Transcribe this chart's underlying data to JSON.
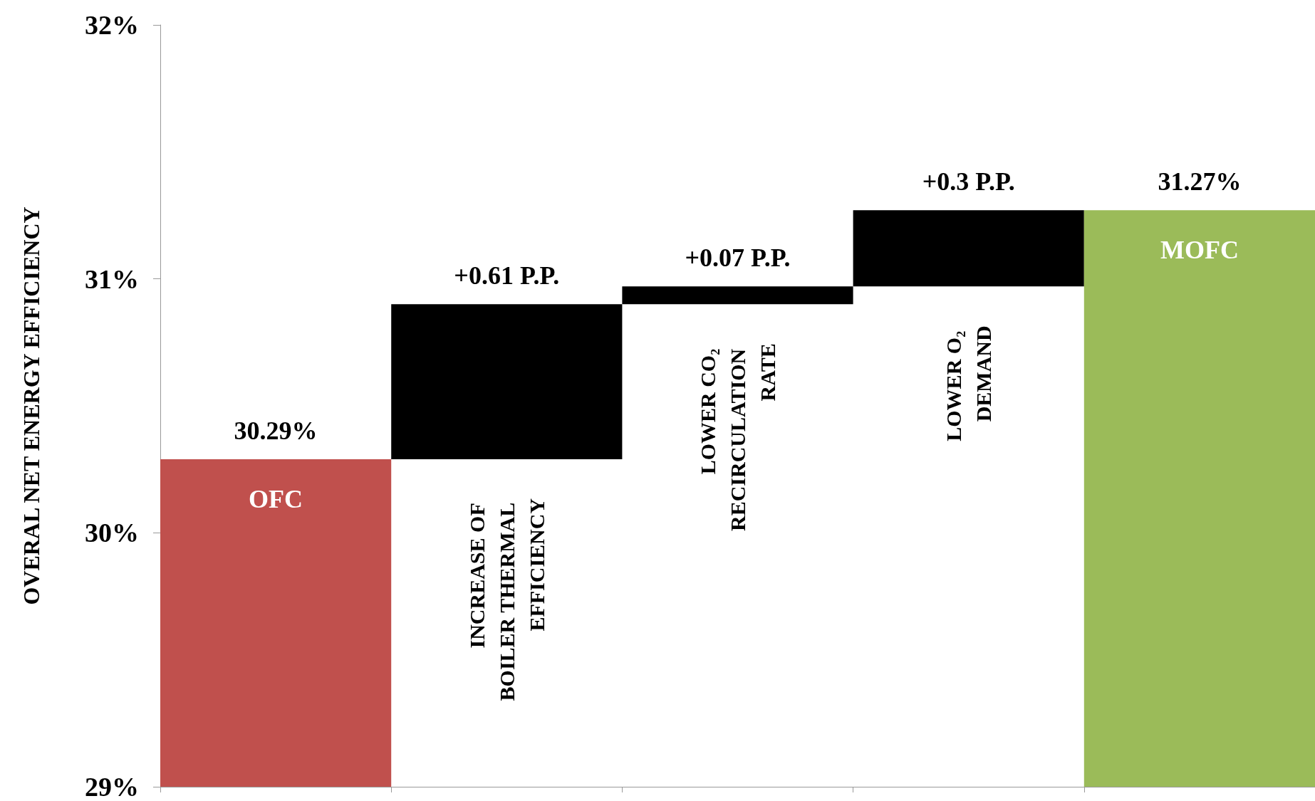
{
  "chart_data": {
    "type": "bar",
    "ylabel": "OVERAL NET ENERGY EFFICIENCY",
    "categories": [
      "OFC",
      "INCREASE OF BOILER THERMAL EFFICIENCY",
      "LOWER CO₂ RECIRCULATION RATE",
      "LOWER O₂ DEMAND",
      "MOFC"
    ],
    "values": [
      30.29,
      0.61,
      0.07,
      0.3,
      31.27
    ],
    "base": [
      null,
      30.29,
      30.9,
      30.97,
      null
    ],
    "colors": [
      "#c0504d",
      "#000000",
      "#000000",
      "#000000",
      "#9bbb59"
    ],
    "value_labels": [
      "30.29%",
      "+0.61 P.P.",
      "+0.07 P.P.",
      "+0.3 P.P.",
      "31.27%"
    ],
    "ylim": [
      29,
      32
    ],
    "yticks": [
      {
        "value": 29,
        "label": "29%"
      },
      {
        "value": 30,
        "label": "30%"
      },
      {
        "value": 31,
        "label": "31%"
      },
      {
        "value": 32,
        "label": "32%"
      }
    ],
    "grid": false,
    "tick_labels": "y"
  }
}
